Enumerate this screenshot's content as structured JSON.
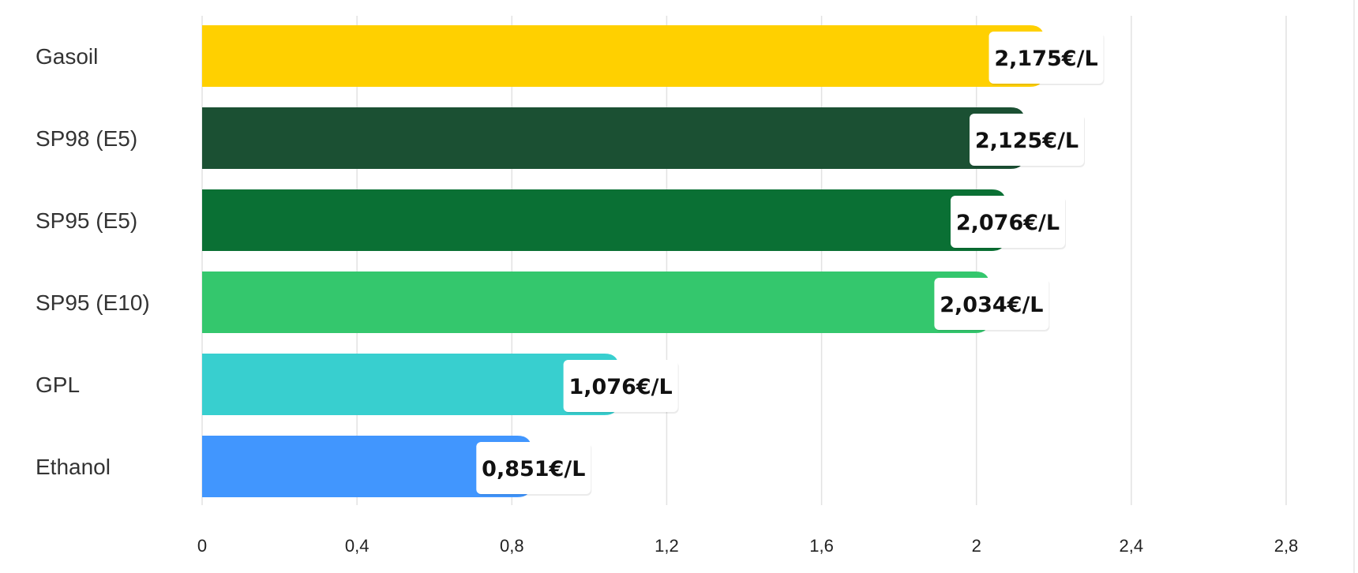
{
  "chart_data": {
    "type": "bar",
    "orientation": "horizontal",
    "categories": [
      "Gasoil",
      "SP98 (E5)",
      "SP95 (E5)",
      "SP95 (E10)",
      "GPL",
      "Ethanol"
    ],
    "values": [
      2.175,
      2.125,
      2.076,
      2.034,
      1.076,
      0.851
    ],
    "value_labels": [
      "2,175€/L",
      "2,125€/L",
      "2,076€/L",
      "2,034€/L",
      "1,076€/L",
      "0,851€/L"
    ],
    "colors": [
      "#ffd000",
      "#1b5033",
      "#0a7034",
      "#34c76d",
      "#38cfcf",
      "#4196fe"
    ],
    "xlim": [
      0,
      2.8
    ],
    "ticks": [
      0,
      0.4,
      0.8,
      1.2,
      1.6,
      2,
      2.4,
      2.8
    ],
    "tick_labels": [
      "0",
      "0,4",
      "0,8",
      "1,2",
      "1,6",
      "2",
      "2,4",
      "2,8"
    ],
    "grid": true,
    "title": "",
    "xlabel": "",
    "ylabel": ""
  }
}
